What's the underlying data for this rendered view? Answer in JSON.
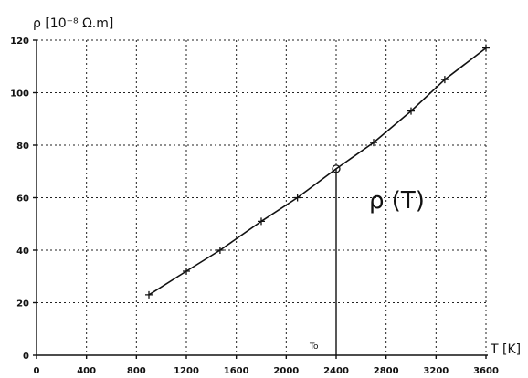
{
  "chart_data": {
    "type": "line",
    "title": "",
    "ylabel": "ρ [10⁻⁸ Ω.m]",
    "xlabel": "T [K]",
    "xlim": [
      0,
      3600
    ],
    "ylim": [
      0,
      120
    ],
    "x_ticks": [
      0,
      400,
      800,
      1200,
      1600,
      2000,
      2400,
      2800,
      3200,
      3600
    ],
    "y_ticks": [
      0,
      20,
      40,
      60,
      80,
      100,
      120
    ],
    "grid": true,
    "series": [
      {
        "marker": "plus",
        "x": [
          900,
          1200,
          1470,
          1800,
          2090,
          2700,
          3000,
          3270,
          3600
        ],
        "y": [
          23,
          32,
          40,
          51,
          60,
          81,
          93,
          105,
          117
        ]
      }
    ],
    "highlight_point": {
      "x": 2400,
      "y": 71,
      "label": "To"
    },
    "annotations": [
      {
        "text": "ρ (T)"
      }
    ]
  }
}
